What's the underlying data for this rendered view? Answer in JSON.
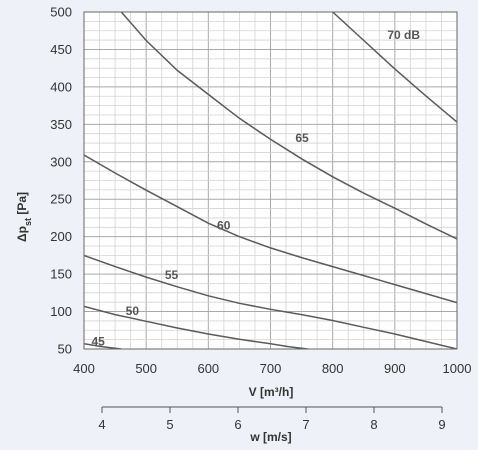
{
  "chart_data": {
    "type": "line",
    "xlabel": "V [m³/h]",
    "ylabel_main": "Δp",
    "ylabel_sub": "st",
    "ylabel_unit": " [Pa]",
    "xlim": [
      400,
      1000
    ],
    "ylim": [
      50,
      500
    ],
    "x_ticks": [
      400,
      500,
      600,
      700,
      800,
      900,
      1000
    ],
    "y_ticks": [
      50,
      100,
      150,
      200,
      250,
      300,
      350,
      400,
      450,
      500
    ],
    "grid": true,
    "secondary_x_axis": {
      "label": "w [m/s]",
      "ticks": [
        4,
        5,
        6,
        7,
        8,
        9
      ],
      "range": [
        3.5,
        9.5
      ]
    },
    "series": [
      {
        "name": "45",
        "points": [
          [
            400,
            57
          ],
          [
            430,
            53
          ],
          [
            460,
            50
          ]
        ]
      },
      {
        "name": "50",
        "points": [
          [
            400,
            107
          ],
          [
            450,
            96
          ],
          [
            500,
            87
          ],
          [
            550,
            78
          ],
          [
            600,
            70
          ],
          [
            650,
            63
          ],
          [
            700,
            57
          ],
          [
            730,
            53
          ],
          [
            760,
            50
          ]
        ]
      },
      {
        "name": "55",
        "points": [
          [
            400,
            175
          ],
          [
            450,
            160
          ],
          [
            500,
            146
          ],
          [
            550,
            133
          ],
          [
            600,
            121
          ],
          [
            650,
            111
          ],
          [
            700,
            103
          ],
          [
            750,
            96
          ],
          [
            800,
            88
          ],
          [
            850,
            79
          ],
          [
            900,
            70
          ],
          [
            950,
            60
          ],
          [
            1000,
            50
          ]
        ]
      },
      {
        "name": "60",
        "points": [
          [
            400,
            309
          ],
          [
            450,
            285
          ],
          [
            500,
            262
          ],
          [
            550,
            240
          ],
          [
            600,
            218
          ],
          [
            650,
            200
          ],
          [
            700,
            185
          ],
          [
            750,
            172
          ],
          [
            800,
            160
          ],
          [
            850,
            148
          ],
          [
            900,
            136
          ],
          [
            950,
            124
          ],
          [
            1000,
            112
          ]
        ]
      },
      {
        "name": "65",
        "points": [
          [
            460,
            500
          ],
          [
            500,
            462
          ],
          [
            550,
            422
          ],
          [
            600,
            390
          ],
          [
            650,
            358
          ],
          [
            700,
            330
          ],
          [
            750,
            304
          ],
          [
            800,
            280
          ],
          [
            850,
            258
          ],
          [
            900,
            238
          ],
          [
            950,
            217
          ],
          [
            1000,
            197
          ]
        ]
      },
      {
        "name": "70 dB",
        "points": [
          [
            800,
            500
          ],
          [
            850,
            462
          ],
          [
            900,
            424
          ],
          [
            950,
            388
          ],
          [
            1000,
            353
          ]
        ]
      }
    ],
    "curve_labels": [
      {
        "text": "45",
        "x": 412,
        "y": 60
      },
      {
        "text": "50",
        "x": 467,
        "y": 101
      },
      {
        "text": "55",
        "x": 530,
        "y": 149
      },
      {
        "text": "60",
        "x": 614,
        "y": 215
      },
      {
        "text": "65",
        "x": 740,
        "y": 332
      },
      {
        "text": "70 dB",
        "x": 888,
        "y": 469
      }
    ]
  }
}
